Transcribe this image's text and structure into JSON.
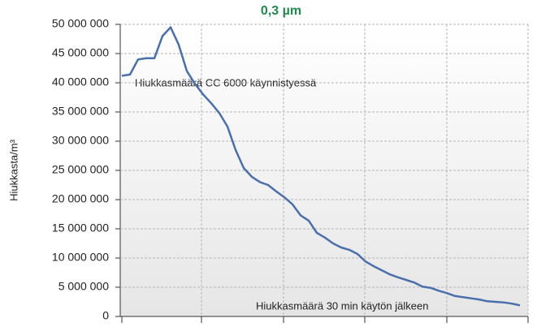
{
  "chart_data": {
    "type": "line",
    "title": "0,3 µm",
    "y_label": "Hiukkasta/m³",
    "annotations": [
      "Hiukkasmäärä CC 6000 käynnistyessä",
      "Hiukkasmäärä 30 min käytön jälkeen"
    ],
    "series": [
      {
        "name": null,
        "color": "#4a6fad",
        "values": [
          41200000,
          41400000,
          44000000,
          44200000,
          44200000,
          48000000,
          49500000,
          46500000,
          42000000,
          39800000,
          38000000,
          36500000,
          34800000,
          32500000,
          28500000,
          25400000,
          23900000,
          23000000,
          22500000,
          21400000,
          20400000,
          19200000,
          17300000,
          16400000,
          14300000,
          13500000,
          12500000,
          11800000,
          11400000,
          10700000,
          9400000,
          8600000,
          7900000,
          7200000,
          6700000,
          6250000,
          5800000,
          5100000,
          4900000,
          4400000,
          4000000,
          3500000,
          3300000,
          3100000,
          2900000,
          2600000,
          2500000,
          2400000,
          2200000,
          1900000
        ]
      }
    ],
    "ylim": [
      0,
      50000000
    ],
    "yticks": [
      {
        "value": 0,
        "label": "0"
      },
      {
        "value": 5000000,
        "label": "5 000 000"
      },
      {
        "value": 10000000,
        "label": "10 000 000"
      },
      {
        "value": 15000000,
        "label": "15 000 000"
      },
      {
        "value": 20000000,
        "label": "20 000 000"
      },
      {
        "value": 25000000,
        "label": "25 000 000"
      },
      {
        "value": 30000000,
        "label": "30 000 000"
      },
      {
        "value": 35000000,
        "label": "35 000 000"
      },
      {
        "value": 40000000,
        "label": "40 000 000"
      },
      {
        "value": 45000000,
        "label": "45 000 000"
      },
      {
        "value": 50000000,
        "label": "50 000 000"
      }
    ],
    "grid": true
  }
}
